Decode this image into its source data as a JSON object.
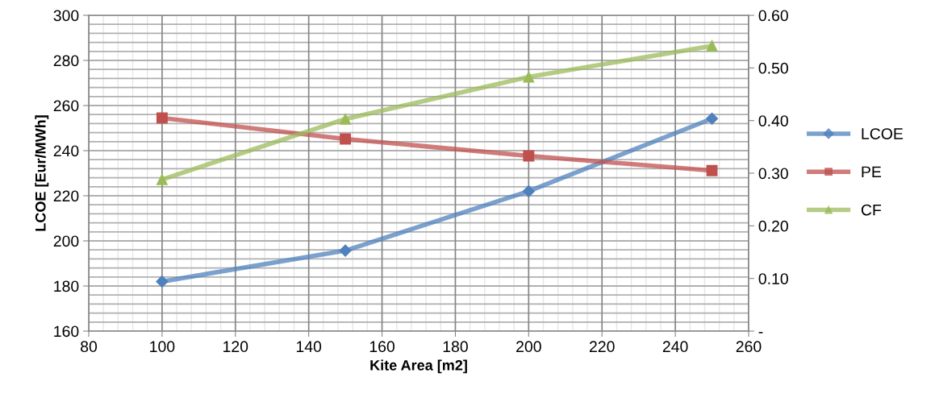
{
  "chart_data": {
    "type": "line",
    "xlabel": "Kite Area [m2]",
    "ylabel": "LCOE [Eur/MWh]",
    "x": [
      100,
      150,
      200,
      250
    ],
    "series": [
      {
        "name": "LCOE",
        "color": "#4f81bd",
        "values": [
          182,
          195.7,
          222,
          254.2
        ],
        "marker": "diamond"
      },
      {
        "name": "PE",
        "color": "#c0504d",
        "values": [
          0.405,
          0.365,
          0.333,
          0.305
        ],
        "marker": "square",
        "axis": "y2"
      },
      {
        "name": "CF",
        "color": "#9bbb59",
        "values": [
          0.288,
          0.403,
          0.483,
          0.542
        ],
        "marker": "triangle",
        "axis": "y2"
      }
    ],
    "xlim": [
      80,
      260
    ],
    "xticks": [
      80,
      100,
      120,
      140,
      160,
      180,
      200,
      220,
      240,
      260
    ],
    "ylim": [
      160,
      300
    ],
    "yticks": [
      160,
      180,
      200,
      220,
      240,
      260,
      280,
      300
    ],
    "y2lim": [
      0,
      0.6
    ],
    "y2ticks": [
      {
        "value": 0,
        "label": "-"
      },
      {
        "value": 0.1,
        "label": "0.10"
      },
      {
        "value": 0.2,
        "label": "0.20"
      },
      {
        "value": 0.3,
        "label": "0.30"
      },
      {
        "value": 0.4,
        "label": "0.40"
      },
      {
        "value": 0.5,
        "label": "0.50"
      },
      {
        "value": 0.6,
        "label": "0.60"
      }
    ],
    "grid": true,
    "legend": "right",
    "line_style": "solid"
  }
}
